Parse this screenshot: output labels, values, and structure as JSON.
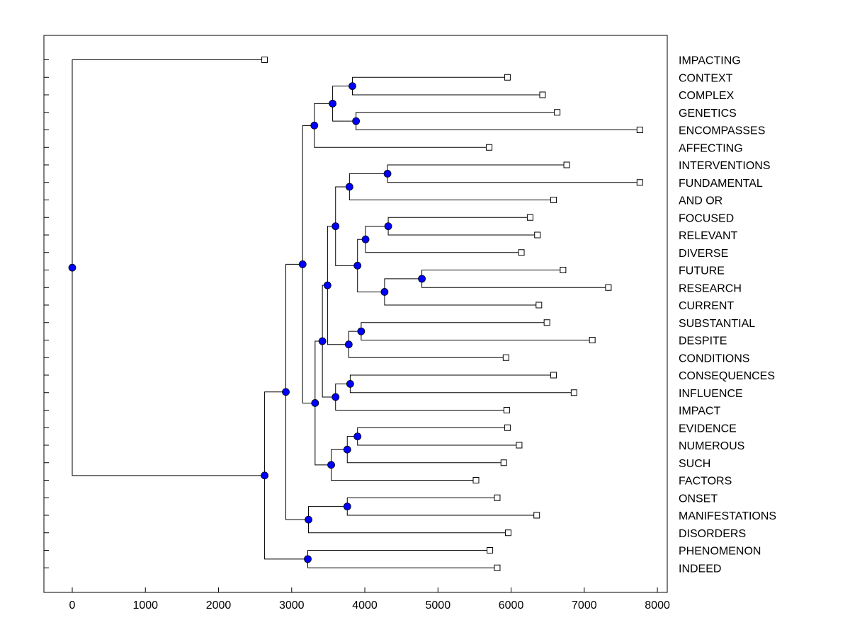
{
  "chart_data": {
    "type": "dendrogram",
    "title": "",
    "xlabel": "",
    "ylabel": "",
    "xlim": [
      -400,
      8100
    ],
    "x_ticks": [
      0,
      1000,
      2000,
      3000,
      4000,
      5000,
      6000,
      7000,
      8000
    ],
    "x_tick_labels": [
      "0",
      "1000",
      "2000",
      "3000",
      "4000",
      "5000",
      "6000",
      "7000",
      "8000"
    ],
    "leaves": [
      {
        "label": "IMPACTING",
        "value": 2630
      },
      {
        "label": "CONTEXT",
        "value": 5950
      },
      {
        "label": "COMPLEX",
        "value": 6430
      },
      {
        "label": "GENETICS",
        "value": 6630
      },
      {
        "label": "ENCOMPASSES",
        "value": 7760
      },
      {
        "label": "AFFECTING",
        "value": 5700
      },
      {
        "label": "INTERVENTIONS",
        "value": 6760
      },
      {
        "label": "FUNDAMENTAL",
        "value": 7760
      },
      {
        "label": "AND OR",
        "value": 6580
      },
      {
        "label": "FOCUSED",
        "value": 6260
      },
      {
        "label": "RELEVANT",
        "value": 6360
      },
      {
        "label": "DIVERSE",
        "value": 6140
      },
      {
        "label": "FUTURE",
        "value": 6710
      },
      {
        "label": "RESEARCH",
        "value": 7330
      },
      {
        "label": "CURRENT",
        "value": 6380
      },
      {
        "label": "SUBSTANTIAL",
        "value": 6490
      },
      {
        "label": "DESPITE",
        "value": 7110
      },
      {
        "label": "CONDITIONS",
        "value": 5930
      },
      {
        "label": "CONSEQUENCES",
        "value": 6580
      },
      {
        "label": "INFLUENCE",
        "value": 6860
      },
      {
        "label": "IMPACT",
        "value": 5940
      },
      {
        "label": "EVIDENCE",
        "value": 5950
      },
      {
        "label": "NUMEROUS",
        "value": 6110
      },
      {
        "label": "SUCH",
        "value": 5900
      },
      {
        "label": "FACTORS",
        "value": 5520
      },
      {
        "label": "ONSET",
        "value": 5810
      },
      {
        "label": "MANIFESTATIONS",
        "value": 6350
      },
      {
        "label": "DISORDERS",
        "value": 5960
      },
      {
        "label": "PHENOMENON",
        "value": 5710
      },
      {
        "label": "INDEED",
        "value": 5810
      }
    ],
    "merges": [
      {
        "id": "n1",
        "value": 3830,
        "children": [
          "CONTEXT",
          "COMPLEX"
        ]
      },
      {
        "id": "n2",
        "value": 3880,
        "children": [
          "GENETICS",
          "ENCOMPASSES"
        ]
      },
      {
        "id": "n3",
        "value": 3560,
        "children": [
          "n1",
          "n2"
        ]
      },
      {
        "id": "n4",
        "value": 3310,
        "children": [
          "n3",
          "AFFECTING"
        ]
      },
      {
        "id": "n5",
        "value": 4310,
        "children": [
          "INTERVENTIONS",
          "FUNDAMENTAL"
        ]
      },
      {
        "id": "n6",
        "value": 3790,
        "children": [
          "n5",
          "AND OR"
        ]
      },
      {
        "id": "n7",
        "value": 4320,
        "children": [
          "FOCUSED",
          "RELEVANT"
        ]
      },
      {
        "id": "n8",
        "value": 4010,
        "children": [
          "n7",
          "DIVERSE"
        ]
      },
      {
        "id": "n9",
        "value": 4780,
        "children": [
          "FUTURE",
          "RESEARCH"
        ]
      },
      {
        "id": "n10",
        "value": 4270,
        "children": [
          "n9",
          "CURRENT"
        ]
      },
      {
        "id": "n11",
        "value": 3900,
        "children": [
          "n8",
          "n10"
        ]
      },
      {
        "id": "n12",
        "value": 3600,
        "children": [
          "n6",
          "n11"
        ]
      },
      {
        "id": "n13",
        "value": 3950,
        "children": [
          "SUBSTANTIAL",
          "DESPITE"
        ]
      },
      {
        "id": "n14",
        "value": 3780,
        "children": [
          "n13",
          "CONDITIONS"
        ]
      },
      {
        "id": "n15",
        "value": 3490,
        "children": [
          "n12",
          "n14"
        ]
      },
      {
        "id": "n16",
        "value": 3800,
        "children": [
          "CONSEQUENCES",
          "INFLUENCE"
        ]
      },
      {
        "id": "n17",
        "value": 3600,
        "children": [
          "n16",
          "IMPACT"
        ]
      },
      {
        "id": "n18",
        "value": 3420,
        "children": [
          "n15",
          "n17"
        ]
      },
      {
        "id": "n19",
        "value": 3900,
        "children": [
          "EVIDENCE",
          "NUMEROUS"
        ]
      },
      {
        "id": "n20",
        "value": 3760,
        "children": [
          "n19",
          "SUCH"
        ]
      },
      {
        "id": "n21",
        "value": 3540,
        "children": [
          "n20",
          "FACTORS"
        ]
      },
      {
        "id": "n22",
        "value": 3320,
        "children": [
          "n18",
          "n21"
        ]
      },
      {
        "id": "n23",
        "value": 3150,
        "children": [
          "n4",
          "n22"
        ]
      },
      {
        "id": "n24",
        "value": 3760,
        "children": [
          "ONSET",
          "MANIFESTATIONS"
        ]
      },
      {
        "id": "n25",
        "value": 3230,
        "children": [
          "n24",
          "DISORDERS"
        ]
      },
      {
        "id": "n26",
        "value": 2920,
        "children": [
          "n23",
          "n25"
        ]
      },
      {
        "id": "n27",
        "value": 3220,
        "children": [
          "PHENOMENON",
          "INDEED"
        ]
      },
      {
        "id": "n28",
        "value": 2630,
        "children": [
          "n26",
          "n27"
        ]
      },
      {
        "id": "n29",
        "value": 0,
        "children": [
          "IMPACTING",
          "n28"
        ]
      }
    ],
    "colors": {
      "node_fill": "#0000ff",
      "leaf_fill": "#ffffff",
      "line": "#000000"
    }
  }
}
